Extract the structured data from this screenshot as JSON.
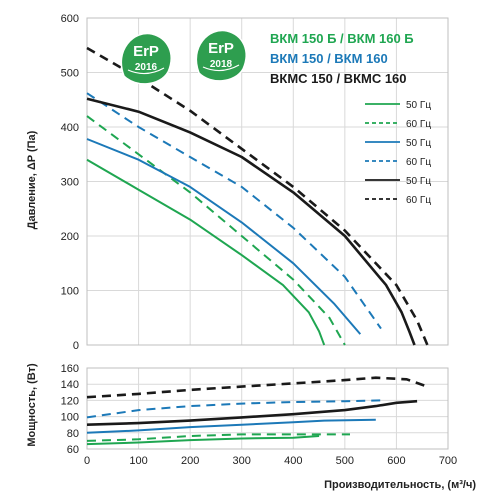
{
  "colors": {
    "green": "#1fa651",
    "blue": "#1c79b8",
    "black": "#1a1a1a",
    "grid": "#d9d9d9",
    "badge": "#2e9e4f"
  },
  "badges": [
    {
      "name": "erp-2016-badge",
      "label": "ErP",
      "year": "2016",
      "icon": "erp-badge-icon"
    },
    {
      "name": "erp-2018-badge",
      "label": "ErP",
      "year": "2018",
      "icon": "erp-badge-icon"
    }
  ],
  "legend_groups": [
    {
      "label": "ВКМ 150 Б / ВКМ 160 Б",
      "color": "#1fa651"
    },
    {
      "label": "ВКМ 150 / ВКМ 160",
      "color": "#1c79b8"
    },
    {
      "label": "ВКМС 150 / ВКМС 160",
      "color": "#1a1a1a"
    }
  ],
  "chart_data": [
    {
      "type": "line",
      "xlabel": "",
      "ylabel": "Давление, ΔP (Па)",
      "xlim": [
        0,
        700
      ],
      "ylim": [
        0,
        600
      ],
      "xticks": [
        "0",
        "100",
        "200",
        "300",
        "400",
        "500",
        "600",
        "700"
      ],
      "yticks": [
        "0",
        "100",
        "200",
        "300",
        "400",
        "500",
        "600"
      ],
      "grid": true,
      "legend": [
        {
          "label": "50 Гц",
          "color": "#1fa651",
          "dash": false
        },
        {
          "label": "60 Гц",
          "color": "#1fa651",
          "dash": true
        },
        {
          "label": "50 Гц",
          "color": "#1c79b8",
          "dash": false
        },
        {
          "label": "60 Гц",
          "color": "#1c79b8",
          "dash": true
        },
        {
          "label": "50 Гц",
          "color": "#1a1a1a",
          "dash": false
        },
        {
          "label": "60 Гц",
          "color": "#1a1a1a",
          "dash": true
        }
      ],
      "series": [
        {
          "color": "#1fa651",
          "dash": false,
          "x": [
            0,
            100,
            200,
            300,
            380,
            430,
            450,
            458,
            460
          ],
          "y": [
            340,
            285,
            230,
            165,
            110,
            60,
            25,
            5,
            0
          ]
        },
        {
          "color": "#1fa651",
          "dash": true,
          "x": [
            0,
            100,
            200,
            300,
            400,
            470,
            500
          ],
          "y": [
            420,
            350,
            280,
            200,
            120,
            50,
            0
          ]
        },
        {
          "color": "#1c79b8",
          "dash": false,
          "x": [
            0,
            100,
            200,
            300,
            400,
            480,
            530
          ],
          "y": [
            378,
            340,
            290,
            225,
            150,
            75,
            20
          ]
        },
        {
          "color": "#1c79b8",
          "dash": true,
          "x": [
            0,
            100,
            200,
            300,
            400,
            500,
            570
          ],
          "y": [
            462,
            400,
            345,
            290,
            215,
            125,
            30
          ]
        },
        {
          "color": "#1a1a1a",
          "dash": false,
          "x": [
            0,
            100,
            200,
            300,
            400,
            500,
            580,
            610,
            625,
            635
          ],
          "y": [
            452,
            428,
            390,
            345,
            280,
            200,
            110,
            60,
            25,
            0
          ]
        },
        {
          "color": "#1a1a1a",
          "dash": true,
          "x": [
            0,
            100,
            200,
            300,
            400,
            500,
            600,
            640,
            660
          ],
          "y": [
            545,
            490,
            430,
            360,
            290,
            210,
            110,
            45,
            0
          ]
        }
      ]
    },
    {
      "type": "line",
      "xlabel": "Производительность, (м³/ч)",
      "ylabel": "Мощность, (Вт)",
      "xlim": [
        0,
        700
      ],
      "ylim": [
        60,
        160
      ],
      "xticks": [
        "0",
        "100",
        "200",
        "300",
        "400",
        "500",
        "600",
        "700"
      ],
      "yticks": [
        "60",
        "80",
        "100",
        "120",
        "140",
        "160"
      ],
      "grid": true,
      "series": [
        {
          "color": "#1fa651",
          "dash": false,
          "x": [
            0,
            100,
            200,
            300,
            400,
            450
          ],
          "y": [
            66,
            68,
            71,
            73,
            74,
            76
          ]
        },
        {
          "color": "#1fa651",
          "dash": true,
          "x": [
            0,
            100,
            200,
            300,
            400,
            510
          ],
          "y": [
            70,
            72,
            76,
            78,
            78,
            78
          ]
        },
        {
          "color": "#1c79b8",
          "dash": false,
          "x": [
            0,
            100,
            200,
            300,
            400,
            460,
            560
          ],
          "y": [
            80,
            83,
            87,
            90,
            93,
            95,
            96
          ]
        },
        {
          "color": "#1c79b8",
          "dash": true,
          "x": [
            0,
            100,
            200,
            300,
            400,
            500,
            570
          ],
          "y": [
            99,
            108,
            113,
            116,
            118,
            119,
            120
          ]
        },
        {
          "color": "#1a1a1a",
          "dash": false,
          "x": [
            0,
            100,
            200,
            300,
            400,
            500,
            560,
            600,
            640
          ],
          "y": [
            90,
            92,
            95,
            99,
            103,
            108,
            113,
            117,
            119
          ]
        },
        {
          "color": "#1a1a1a",
          "dash": true,
          "x": [
            0,
            100,
            200,
            300,
            400,
            500,
            560,
            620,
            660
          ],
          "y": [
            124,
            128,
            133,
            137,
            141,
            145,
            148,
            146,
            137
          ]
        }
      ]
    }
  ]
}
